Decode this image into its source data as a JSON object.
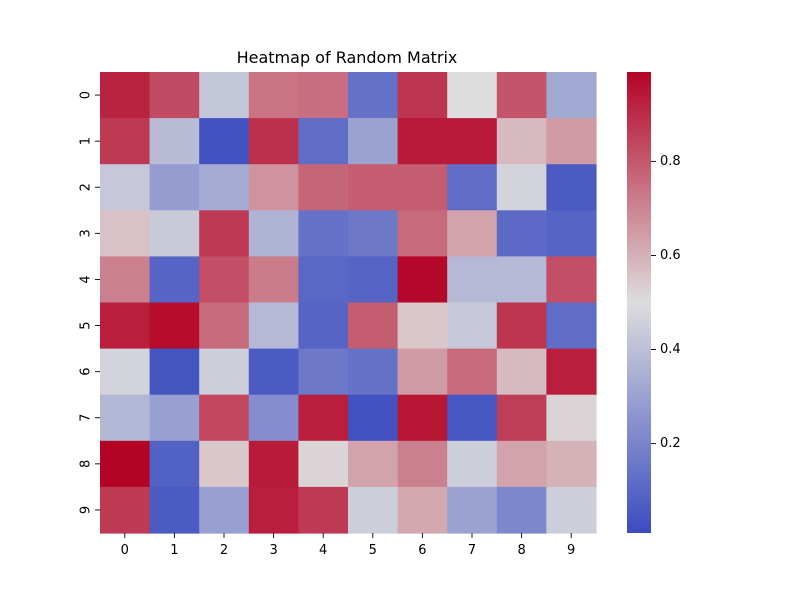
{
  "chart_data": {
    "type": "heatmap",
    "title": "Heatmap of Random Matrix",
    "xlabel": "",
    "ylabel": "",
    "x_categories": [
      "0",
      "1",
      "2",
      "3",
      "4",
      "5",
      "6",
      "7",
      "8",
      "9"
    ],
    "y_categories": [
      "0",
      "1",
      "2",
      "3",
      "4",
      "5",
      "6",
      "7",
      "8",
      "9"
    ],
    "values": [
      [
        0.92,
        0.83,
        0.42,
        0.74,
        0.75,
        0.14,
        0.88,
        0.5,
        0.81,
        0.32
      ],
      [
        0.87,
        0.39,
        0.03,
        0.89,
        0.12,
        0.3,
        0.94,
        0.94,
        0.58,
        0.65
      ],
      [
        0.43,
        0.28,
        0.33,
        0.67,
        0.77,
        0.79,
        0.79,
        0.12,
        0.47,
        0.06
      ],
      [
        0.56,
        0.44,
        0.87,
        0.36,
        0.14,
        0.16,
        0.76,
        0.63,
        0.11,
        0.09
      ],
      [
        0.71,
        0.09,
        0.82,
        0.72,
        0.1,
        0.09,
        0.98,
        0.38,
        0.38,
        0.82
      ],
      [
        0.93,
        0.97,
        0.76,
        0.38,
        0.09,
        0.79,
        0.55,
        0.43,
        0.88,
        0.12
      ],
      [
        0.47,
        0.04,
        0.45,
        0.06,
        0.16,
        0.14,
        0.65,
        0.76,
        0.58,
        0.93
      ],
      [
        0.37,
        0.29,
        0.84,
        0.23,
        0.93,
        0.03,
        0.95,
        0.05,
        0.86,
        0.52
      ],
      [
        0.99,
        0.08,
        0.55,
        0.94,
        0.52,
        0.63,
        0.71,
        0.45,
        0.63,
        0.6
      ],
      [
        0.87,
        0.06,
        0.29,
        0.93,
        0.87,
        0.45,
        0.62,
        0.3,
        0.21,
        0.45
      ]
    ],
    "colormap": "coolwarm",
    "colormap_stops": [
      "#3b4cc0",
      "#dddddd",
      "#b40426"
    ],
    "vmin": 0.01,
    "vmax": 0.99,
    "colorbar_ticks": [
      "0.2",
      "0.4",
      "0.6",
      "0.8"
    ],
    "grid": false
  }
}
